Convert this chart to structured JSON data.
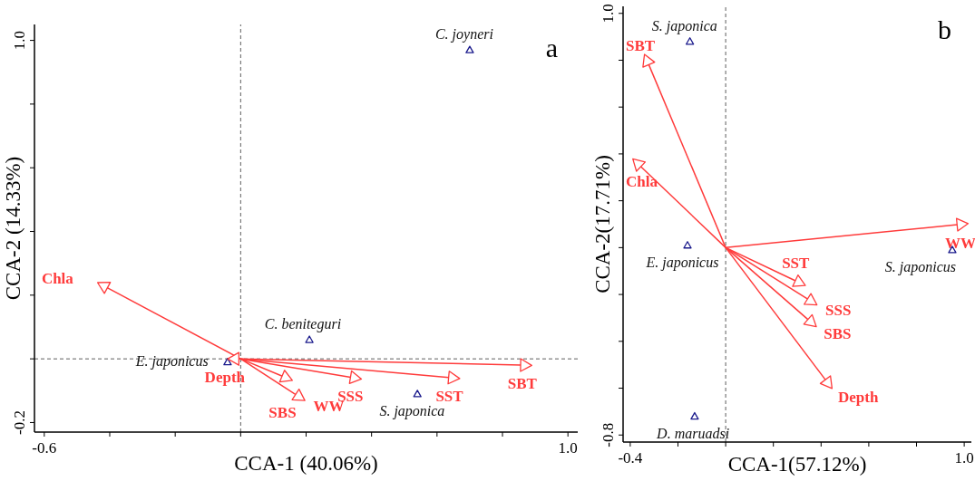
{
  "chart_data": [
    {
      "type": "scatter",
      "xlabel": "CCA-1 (40.06%)",
      "ylabel": "CCA-2 (14.33%)",
      "xlim": [
        -0.63,
        1.03
      ],
      "ylim": [
        -0.23,
        1.05
      ],
      "xticks": [
        -0.6,
        {
          "value": -0.4,
          "label": null
        },
        {
          "value": -0.2,
          "label": null
        },
        {
          "value": 0,
          "label": null
        },
        {
          "value": 0.2,
          "label": null
        },
        {
          "value": 0.4,
          "label": null
        },
        {
          "value": 0.6,
          "label": null
        },
        {
          "value": 0.8,
          "label": null
        },
        {
          "value": 1.0,
          "label": "1.0"
        }
      ],
      "yticks": [
        {
          "value": -0.2,
          "label": "-0.2"
        },
        {
          "value": 0,
          "label": null
        },
        {
          "value": 0.2,
          "label": null
        },
        {
          "value": 0.4,
          "label": null
        },
        {
          "value": 0.6,
          "label": null
        },
        {
          "value": 0.8,
          "label": null
        },
        {
          "value": 1.0,
          "label": "1.0"
        }
      ],
      "ref_lines": [
        {
          "axis": "x",
          "value": 0,
          "line_style": "dashed",
          "color": "#333333"
        },
        {
          "axis": "y",
          "value": 0,
          "line_style": "dashed",
          "color": "#333333"
        }
      ],
      "series": [
        {
          "color": "#1a1a8c",
          "marker": "triangle",
          "x": [
            0.7,
            0.21,
            -0.04,
            0.54
          ],
          "values": [
            0.97,
            0.06,
            -0.01,
            -0.11
          ]
        },
        {
          "color": "#ff3b3b",
          "marker": "triangle",
          "x": [
            -0.42,
            -0.02,
            0.14,
            0.18,
            0.35,
            0.65,
            0.87
          ],
          "values": [
            0.23,
            0.0,
            -0.06,
            -0.12,
            -0.06,
            -0.06,
            -0.02
          ]
        }
      ],
      "annotations": [
        "a",
        {
          "text": "C. joyneri",
          "x": 0.7,
          "y": 0.97
        },
        {
          "text": "C. beniteguri",
          "x": 0.21,
          "y": 0.06
        },
        {
          "text": "E. japonicus",
          "x": -0.04,
          "y": -0.01
        },
        {
          "text": "S. japonica",
          "x": 0.54,
          "y": -0.11
        },
        {
          "text": "Chla",
          "x": -0.42,
          "y": 0.23
        },
        {
          "text": "Depth",
          "x": -0.02,
          "y": 0.0
        },
        {
          "text": "SBS",
          "x": 0.14,
          "y": -0.06
        },
        {
          "text": "WW",
          "x": 0.18,
          "y": -0.12
        },
        {
          "text": "SSS",
          "x": 0.35,
          "y": -0.06
        },
        {
          "text": "SST",
          "x": 0.65,
          "y": -0.06
        },
        {
          "text": "SBT",
          "x": 0.87,
          "y": -0.02
        }
      ]
    },
    {
      "type": "scatter",
      "xlabel": "CCA-1(57.12%)",
      "ylabel": "CCA-2(17.71%)",
      "xlim": [
        -0.43,
        1.03
      ],
      "ylim": [
        -0.83,
        1.03
      ],
      "xticks": [
        -0.4,
        {
          "value": -0.2,
          "label": null
        },
        {
          "value": 0,
          "label": null
        },
        {
          "value": 0.2,
          "label": null
        },
        {
          "value": 0.4,
          "label": null
        },
        {
          "value": 0.6,
          "label": null
        },
        {
          "value": 0.8,
          "label": null
        },
        {
          "value": 1.0,
          "label": "1.0"
        }
      ],
      "yticks": [
        {
          "value": -0.8,
          "label": "-0.8"
        },
        {
          "value": -0.6,
          "label": null
        },
        {
          "value": -0.4,
          "label": null
        },
        {
          "value": -0.2,
          "label": null
        },
        {
          "value": 0,
          "label": null
        },
        {
          "value": 0.2,
          "label": null
        },
        {
          "value": 0.4,
          "label": null
        },
        {
          "value": 0.6,
          "label": null
        },
        {
          "value": 0.8,
          "label": null
        },
        {
          "value": 1.0,
          "label": "1.0"
        }
      ],
      "ref_lines": [
        {
          "axis": "x",
          "value": 0,
          "line_style": "dashed",
          "color": "#333333"
        }
      ],
      "series": [
        {
          "color": "#1a1a8c",
          "marker": "triangle",
          "x": [
            -0.15,
            -0.16,
            0.95,
            -0.13
          ],
          "values": [
            0.88,
            0.01,
            -0.01,
            -0.72
          ]
        },
        {
          "color": "#ff3b3b",
          "marker": "triangle",
          "x": [
            -0.33,
            -0.37,
            0.99,
            0.31,
            0.36,
            0.36,
            0.43
          ],
          "values": [
            0.8,
            0.36,
            0.1,
            -0.15,
            -0.23,
            -0.32,
            -0.58
          ]
        }
      ],
      "annotations": [
        "b",
        {
          "text": "S. japonica",
          "x": -0.15,
          "y": 0.88
        },
        {
          "text": "E. japonicus",
          "x": -0.16,
          "y": 0.01
        },
        {
          "text": "S. japonicus",
          "x": 0.95,
          "y": -0.01
        },
        {
          "text": "D. maruadsi",
          "x": -0.13,
          "y": -0.72
        },
        {
          "text": "SBT",
          "x": -0.33,
          "y": 0.8
        },
        {
          "text": "Chla",
          "x": -0.37,
          "y": 0.36
        },
        {
          "text": "WW",
          "x": 0.99,
          "y": 0.1
        },
        {
          "text": "SST",
          "x": 0.31,
          "y": -0.15
        },
        {
          "text": "SSS",
          "x": 0.36,
          "y": -0.23
        },
        {
          "text": "SBS",
          "x": 0.36,
          "y": -0.32
        },
        {
          "text": "Depth",
          "x": 0.43,
          "y": -0.58
        }
      ]
    }
  ]
}
